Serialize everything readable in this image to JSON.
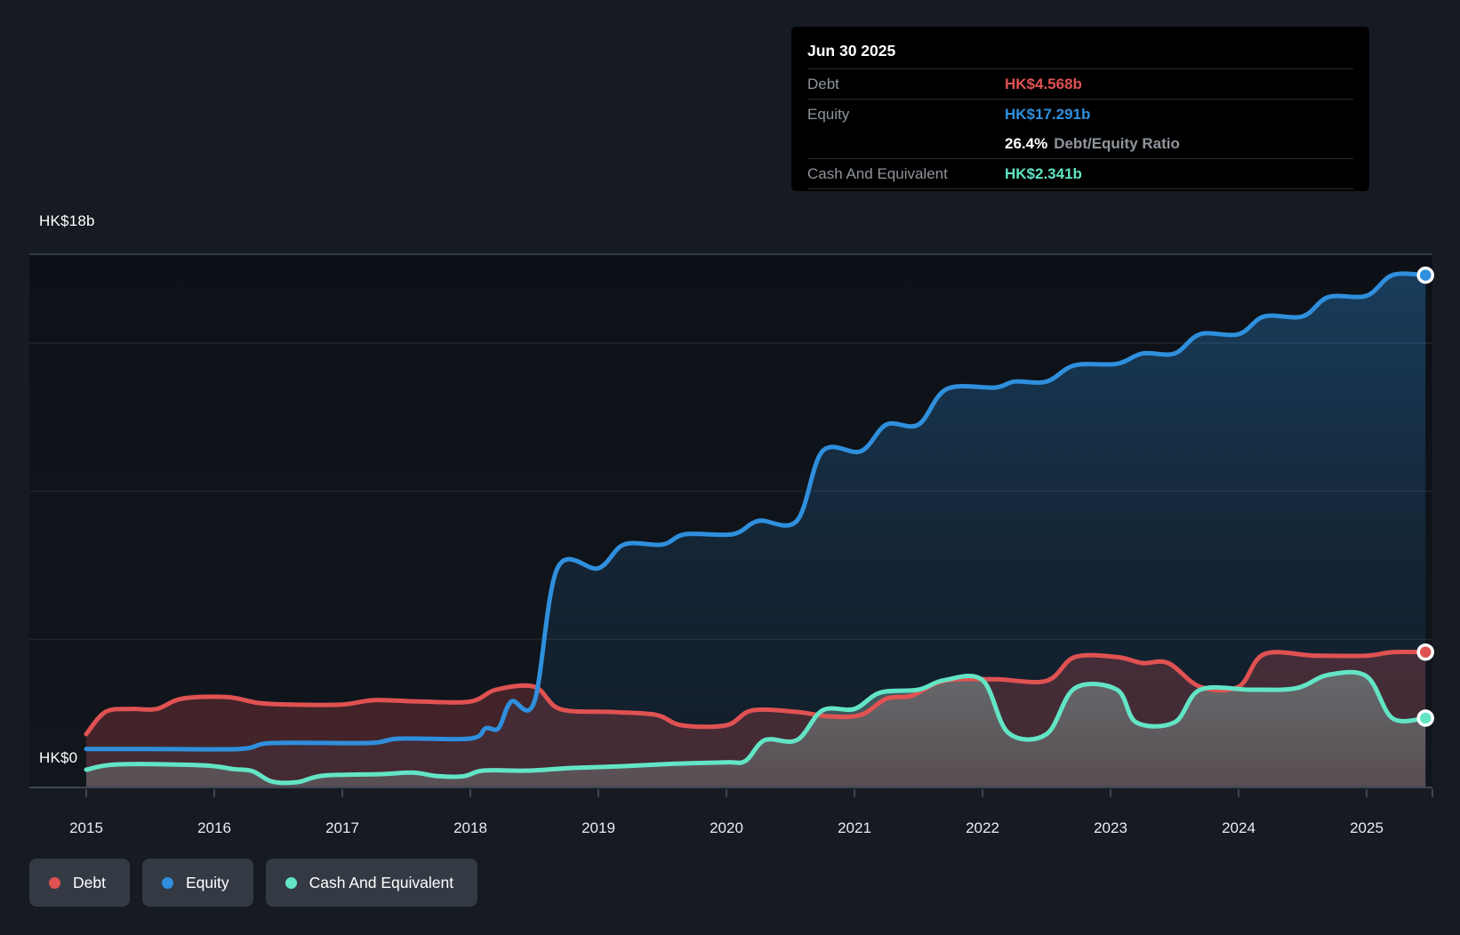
{
  "y_axis": {
    "top_label": "HK$18b",
    "zero_label": "HK$0"
  },
  "tooltip": {
    "date": "Jun 30 2025",
    "debt_label": "Debt",
    "debt_value": "HK$4.568b",
    "equity_label": "Equity",
    "equity_value": "HK$17.291b",
    "ratio_value": "26.4%",
    "ratio_label": "Debt/Equity Ratio",
    "cash_label": "Cash And Equivalent",
    "cash_value": "HK$2.341b"
  },
  "legend": {
    "debt": "Debt",
    "equity": "Equity",
    "cash": "Cash And Equivalent"
  },
  "colors": {
    "debt": "#e05252",
    "equity": "#2f8fdd",
    "cash": "#63e5c5",
    "grid_minor": "#272d37",
    "grid_major": "#3d4551",
    "plot_bg_top": "#0d1117",
    "plot_bg_bottom": "#11161d",
    "page_bg": "#161b22"
  },
  "chart_data": {
    "type": "area",
    "title": "Debt to Equity history",
    "unit": "HK$ billions",
    "ylim": [
      0,
      18
    ],
    "xlim": [
      2014.56,
      2025.51
    ],
    "y_top_label_value": 18,
    "gridline_values_billion": [
      5,
      10,
      15
    ],
    "x_ticks": [
      2015,
      2016,
      2017,
      2018,
      2019,
      2020,
      2021,
      2022,
      2023,
      2024,
      2025
    ],
    "legend_position": "bottom-left",
    "grid": "horizontal-only",
    "last_point_date": "Jun 30 2025",
    "series": [
      {
        "name": "Debt",
        "color": "#e05252",
        "final_value_billion": 4.568,
        "points": [
          [
            2015.0,
            1.8
          ],
          [
            2015.15,
            2.55
          ],
          [
            2015.35,
            2.65
          ],
          [
            2015.55,
            2.65
          ],
          [
            2015.75,
            3.0
          ],
          [
            2016.1,
            3.05
          ],
          [
            2016.35,
            2.85
          ],
          [
            2016.6,
            2.8
          ],
          [
            2017.0,
            2.8
          ],
          [
            2017.25,
            2.95
          ],
          [
            2017.6,
            2.9
          ],
          [
            2018.0,
            2.9
          ],
          [
            2018.2,
            3.3
          ],
          [
            2018.5,
            3.4
          ],
          [
            2018.7,
            2.65
          ],
          [
            2019.1,
            2.55
          ],
          [
            2019.45,
            2.45
          ],
          [
            2019.65,
            2.1
          ],
          [
            2020.0,
            2.1
          ],
          [
            2020.2,
            2.6
          ],
          [
            2020.55,
            2.55
          ],
          [
            2020.8,
            2.4
          ],
          [
            2021.05,
            2.45
          ],
          [
            2021.25,
            3.0
          ],
          [
            2021.45,
            3.1
          ],
          [
            2021.7,
            3.6
          ],
          [
            2022.1,
            3.65
          ],
          [
            2022.5,
            3.6
          ],
          [
            2022.72,
            4.4
          ],
          [
            2023.05,
            4.4
          ],
          [
            2023.25,
            4.2
          ],
          [
            2023.45,
            4.2
          ],
          [
            2023.7,
            3.4
          ],
          [
            2024.0,
            3.4
          ],
          [
            2024.2,
            4.5
          ],
          [
            2024.6,
            4.45
          ],
          [
            2025.0,
            4.45
          ],
          [
            2025.2,
            4.568
          ],
          [
            2025.46,
            4.568
          ]
        ]
      },
      {
        "name": "Equity",
        "color": "#2f8fdd",
        "final_value_billion": 17.291,
        "points": [
          [
            2015.0,
            1.3
          ],
          [
            2015.5,
            1.3
          ],
          [
            2016.2,
            1.3
          ],
          [
            2016.45,
            1.5
          ],
          [
            2017.2,
            1.5
          ],
          [
            2017.45,
            1.65
          ],
          [
            2018.0,
            1.65
          ],
          [
            2018.12,
            2.0
          ],
          [
            2018.22,
            2.0
          ],
          [
            2018.32,
            2.9
          ],
          [
            2018.5,
            2.9
          ],
          [
            2018.68,
            7.4
          ],
          [
            2019.0,
            7.4
          ],
          [
            2019.2,
            8.2
          ],
          [
            2019.5,
            8.2
          ],
          [
            2019.68,
            8.55
          ],
          [
            2020.05,
            8.55
          ],
          [
            2020.25,
            9.0
          ],
          [
            2020.55,
            9.0
          ],
          [
            2020.75,
            11.35
          ],
          [
            2021.05,
            11.35
          ],
          [
            2021.25,
            12.25
          ],
          [
            2021.5,
            12.25
          ],
          [
            2021.72,
            13.45
          ],
          [
            2022.1,
            13.5
          ],
          [
            2022.25,
            13.7
          ],
          [
            2022.5,
            13.7
          ],
          [
            2022.72,
            14.25
          ],
          [
            2023.05,
            14.3
          ],
          [
            2023.25,
            14.65
          ],
          [
            2023.5,
            14.65
          ],
          [
            2023.7,
            15.3
          ],
          [
            2024.0,
            15.3
          ],
          [
            2024.2,
            15.9
          ],
          [
            2024.5,
            15.9
          ],
          [
            2024.7,
            16.55
          ],
          [
            2025.0,
            16.6
          ],
          [
            2025.2,
            17.291
          ],
          [
            2025.46,
            17.291
          ]
        ]
      },
      {
        "name": "Cash And Equivalent",
        "color": "#63e5c5",
        "final_value_billion": 2.341,
        "points": [
          [
            2015.0,
            0.6
          ],
          [
            2015.25,
            0.78
          ],
          [
            2015.9,
            0.75
          ],
          [
            2016.15,
            0.62
          ],
          [
            2016.3,
            0.55
          ],
          [
            2016.45,
            0.2
          ],
          [
            2016.65,
            0.18
          ],
          [
            2016.85,
            0.4
          ],
          [
            2017.3,
            0.45
          ],
          [
            2017.55,
            0.5
          ],
          [
            2017.75,
            0.38
          ],
          [
            2017.95,
            0.38
          ],
          [
            2018.1,
            0.57
          ],
          [
            2018.45,
            0.57
          ],
          [
            2018.8,
            0.66
          ],
          [
            2019.2,
            0.72
          ],
          [
            2019.6,
            0.8
          ],
          [
            2020.0,
            0.85
          ],
          [
            2020.15,
            0.9
          ],
          [
            2020.3,
            1.6
          ],
          [
            2020.55,
            1.6
          ],
          [
            2020.75,
            2.6
          ],
          [
            2021.0,
            2.65
          ],
          [
            2021.2,
            3.2
          ],
          [
            2021.5,
            3.3
          ],
          [
            2021.7,
            3.62
          ],
          [
            2022.0,
            3.62
          ],
          [
            2022.2,
            1.85
          ],
          [
            2022.5,
            1.8
          ],
          [
            2022.72,
            3.35
          ],
          [
            2023.05,
            3.3
          ],
          [
            2023.2,
            2.2
          ],
          [
            2023.5,
            2.2
          ],
          [
            2023.7,
            3.3
          ],
          [
            2024.1,
            3.3
          ],
          [
            2024.45,
            3.35
          ],
          [
            2024.7,
            3.8
          ],
          [
            2025.0,
            3.75
          ],
          [
            2025.2,
            2.341
          ],
          [
            2025.46,
            2.341
          ]
        ]
      }
    ]
  }
}
